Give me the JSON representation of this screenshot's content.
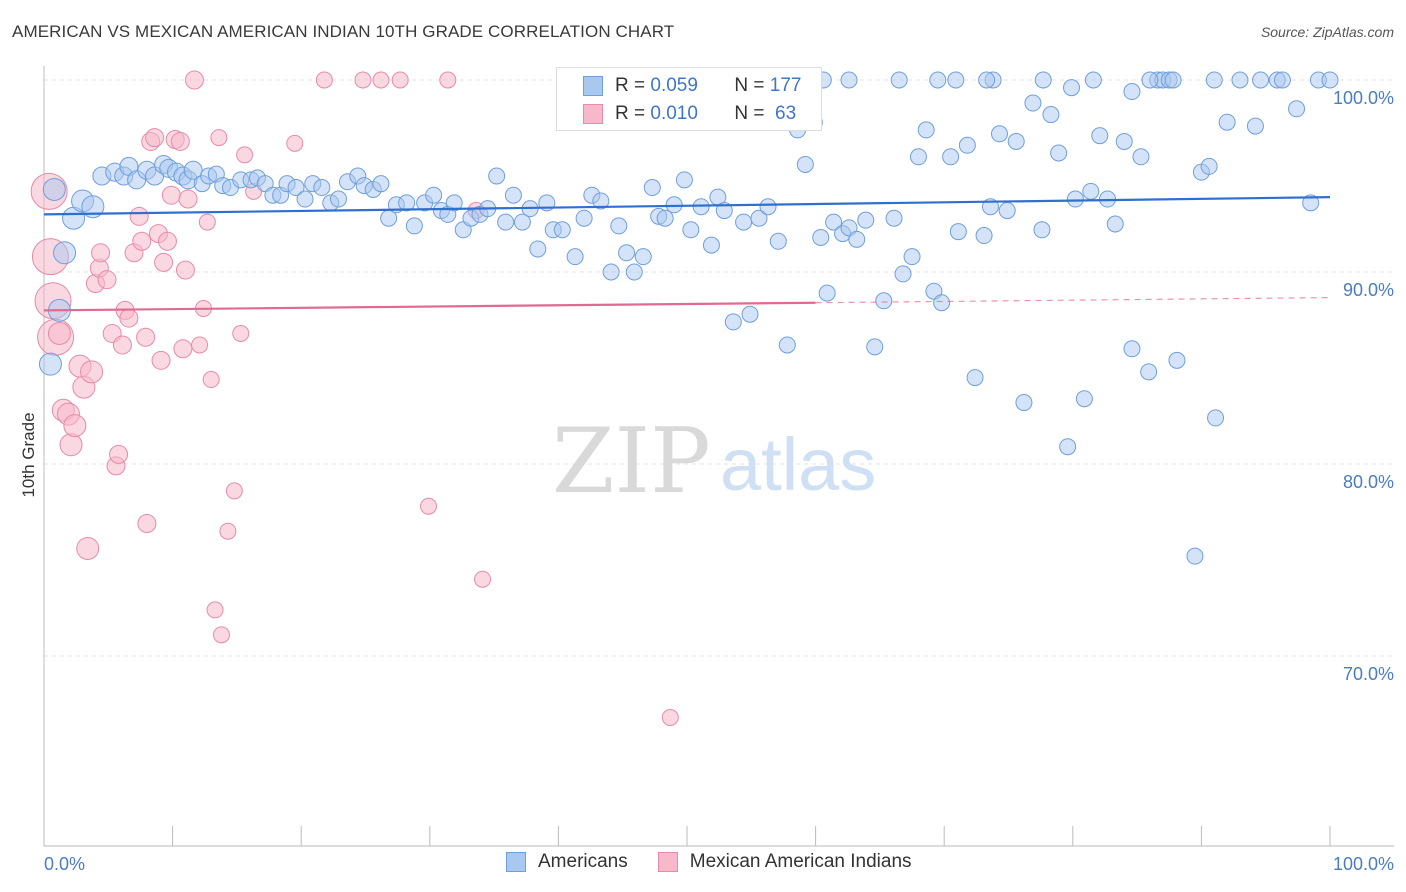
{
  "header": {
    "title": "AMERICAN VS MEXICAN AMERICAN INDIAN 10TH GRADE CORRELATION CHART",
    "source": "Source: ZipAtlas.com"
  },
  "watermark": {
    "zip": "ZIP",
    "atlas": "atlas"
  },
  "legend": {
    "rows": [
      {
        "r_label": "R = ",
        "r_value": "0.059",
        "n_label": "N = ",
        "n_value": "177"
      },
      {
        "r_label": "R = ",
        "r_value": "0.010",
        "n_label": "N = ",
        "n_value": " 63"
      }
    ]
  },
  "colors": {
    "americans_fill": "#a9c8f0",
    "americans_stroke": "#6f9fdc",
    "americans_line": "#2f6fcf",
    "mexican_fill": "#f6b8ca",
    "mexican_stroke": "#e88aa8",
    "mexican_line": "#e06a92"
  },
  "chart_data": {
    "type": "scatter",
    "ylabel": "10th Grade",
    "xlim": [
      0,
      100
    ],
    "ylim": [
      60,
      102
    ],
    "x_ticks": [
      "0.0%",
      "100.0%"
    ],
    "y_ticks": [
      {
        "value": 100,
        "label": "100.0%"
      },
      {
        "value": 90,
        "label": "90.0%"
      },
      {
        "value": 80,
        "label": "80.0%"
      },
      {
        "value": 70,
        "label": "70.0%"
      }
    ],
    "grid": true,
    "legend_position": "bottom",
    "series": [
      {
        "name": "Americans",
        "r": 0.059,
        "n": 177,
        "trend": {
          "x": [
            0,
            100
          ],
          "y": [
            93.0,
            93.9
          ]
        },
        "points": [
          [
            0.5,
            85.2
          ],
          [
            0.8,
            94.3
          ],
          [
            1.2,
            88.0
          ],
          [
            1.6,
            91.0
          ],
          [
            2.3,
            92.8
          ],
          [
            3.0,
            93.7
          ],
          [
            3.8,
            93.4
          ],
          [
            4.5,
            95.0
          ],
          [
            5.5,
            95.2
          ],
          [
            6.2,
            95.0
          ],
          [
            6.6,
            95.5
          ],
          [
            7.2,
            94.8
          ],
          [
            8.0,
            95.3
          ],
          [
            8.6,
            95.0
          ],
          [
            9.3,
            95.6
          ],
          [
            9.7,
            95.4
          ],
          [
            10.3,
            95.2
          ],
          [
            10.8,
            95.0
          ],
          [
            11.2,
            94.8
          ],
          [
            11.6,
            95.3
          ],
          [
            12.3,
            94.6
          ],
          [
            12.8,
            95.0
          ],
          [
            13.4,
            95.1
          ],
          [
            13.9,
            94.5
          ],
          [
            14.5,
            94.4
          ],
          [
            15.3,
            94.8
          ],
          [
            16.1,
            94.8
          ],
          [
            16.6,
            94.9
          ],
          [
            17.2,
            94.6
          ],
          [
            17.8,
            94.0
          ],
          [
            18.4,
            94.0
          ],
          [
            18.9,
            94.6
          ],
          [
            19.6,
            94.4
          ],
          [
            20.3,
            93.8
          ],
          [
            20.9,
            94.6
          ],
          [
            21.6,
            94.4
          ],
          [
            22.3,
            93.6
          ],
          [
            22.9,
            93.8
          ],
          [
            23.6,
            94.7
          ],
          [
            24.4,
            95.0
          ],
          [
            24.9,
            94.5
          ],
          [
            25.6,
            94.3
          ],
          [
            26.2,
            94.6
          ],
          [
            26.8,
            92.8
          ],
          [
            27.4,
            93.5
          ],
          [
            28.2,
            93.6
          ],
          [
            28.8,
            92.4
          ],
          [
            29.6,
            93.6
          ],
          [
            30.3,
            94.0
          ],
          [
            30.9,
            93.2
          ],
          [
            31.4,
            93.0
          ],
          [
            31.9,
            93.6
          ],
          [
            32.6,
            92.2
          ],
          [
            33.2,
            92.8
          ],
          [
            33.9,
            93.0
          ],
          [
            34.5,
            93.3
          ],
          [
            35.2,
            95.0
          ],
          [
            35.9,
            92.6
          ],
          [
            36.5,
            94.0
          ],
          [
            37.2,
            92.6
          ],
          [
            37.8,
            93.3
          ],
          [
            38.4,
            91.2
          ],
          [
            39.1,
            93.6
          ],
          [
            39.6,
            92.2
          ],
          [
            40.3,
            92.2
          ],
          [
            41.3,
            90.8
          ],
          [
            42.0,
            92.8
          ],
          [
            42.6,
            94.0
          ],
          [
            43.3,
            93.7
          ],
          [
            44.1,
            90.0
          ],
          [
            44.7,
            92.4
          ],
          [
            45.3,
            91.0
          ],
          [
            45.9,
            90.0
          ],
          [
            46.6,
            90.8
          ],
          [
            47.3,
            94.4
          ],
          [
            47.8,
            92.9
          ],
          [
            48.3,
            92.8
          ],
          [
            49.0,
            93.5
          ],
          [
            49.8,
            94.8
          ],
          [
            50.3,
            92.2
          ],
          [
            51.1,
            93.4
          ],
          [
            51.9,
            91.4
          ],
          [
            52.4,
            93.9
          ],
          [
            52.9,
            93.2
          ],
          [
            53.6,
            87.4
          ],
          [
            54.4,
            92.6
          ],
          [
            54.9,
            87.8
          ],
          [
            55.6,
            92.8
          ],
          [
            56.3,
            93.4
          ],
          [
            57.1,
            91.6
          ],
          [
            57.8,
            86.2
          ],
          [
            58.6,
            97.4
          ],
          [
            59.2,
            95.6
          ],
          [
            59.9,
            97.8
          ],
          [
            60.4,
            91.8
          ],
          [
            60.9,
            88.9
          ],
          [
            61.4,
            92.6
          ],
          [
            62.1,
            92.0
          ],
          [
            62.6,
            92.3
          ],
          [
            63.2,
            91.7
          ],
          [
            63.9,
            92.7
          ],
          [
            64.6,
            86.1
          ],
          [
            65.3,
            88.5
          ],
          [
            66.1,
            92.8
          ],
          [
            66.8,
            89.9
          ],
          [
            67.5,
            90.8
          ],
          [
            68.0,
            96.0
          ],
          [
            68.6,
            97.4
          ],
          [
            69.2,
            89.0
          ],
          [
            69.8,
            88.4
          ],
          [
            70.5,
            96.0
          ],
          [
            71.1,
            92.1
          ],
          [
            71.8,
            96.6
          ],
          [
            72.4,
            84.5
          ],
          [
            73.1,
            91.9
          ],
          [
            73.6,
            93.4
          ],
          [
            74.3,
            97.2
          ],
          [
            74.9,
            93.2
          ],
          [
            75.6,
            96.8
          ],
          [
            76.2,
            83.2
          ],
          [
            76.9,
            98.8
          ],
          [
            77.6,
            92.2
          ],
          [
            78.3,
            98.2
          ],
          [
            78.9,
            96.2
          ],
          [
            79.6,
            80.9
          ],
          [
            80.2,
            93.8
          ],
          [
            80.9,
            83.4
          ],
          [
            81.4,
            94.2
          ],
          [
            82.1,
            97.1
          ],
          [
            82.7,
            93.8
          ],
          [
            83.3,
            92.5
          ],
          [
            84.0,
            96.8
          ],
          [
            84.6,
            86.0
          ],
          [
            85.3,
            96.0
          ],
          [
            85.9,
            84.8
          ],
          [
            86.6,
            100
          ],
          [
            87.0,
            100
          ],
          [
            87.5,
            100
          ],
          [
            88.1,
            85.4
          ],
          [
            89.5,
            75.2
          ],
          [
            90.0,
            95.2
          ],
          [
            90.6,
            95.5
          ],
          [
            91.1,
            82.4
          ],
          [
            92.0,
            97.8
          ],
          [
            93.0,
            100
          ],
          [
            94.6,
            100
          ],
          [
            95.9,
            100
          ],
          [
            97.4,
            98.5
          ],
          [
            98.5,
            93.6
          ],
          [
            99.1,
            100
          ],
          [
            69.5,
            100
          ],
          [
            70.9,
            100
          ],
          [
            73.8,
            100
          ],
          [
            77.7,
            100
          ],
          [
            81.6,
            100
          ],
          [
            60.6,
            100
          ],
          [
            100.0,
            100
          ],
          [
            79.9,
            99.6
          ],
          [
            84.6,
            99.4
          ],
          [
            86.0,
            100
          ],
          [
            91.0,
            100
          ],
          [
            94.2,
            97.6
          ],
          [
            96.3,
            100
          ],
          [
            87.8,
            100
          ],
          [
            62.6,
            100
          ],
          [
            73.3,
            100
          ],
          [
            66.5,
            100
          ]
        ]
      },
      {
        "name": "Mexican American Indians",
        "r": 0.01,
        "n": 63,
        "trend": {
          "x": [
            0,
            60
          ],
          "y": [
            88.0,
            88.4
          ]
        },
        "points": [
          [
            0.4,
            94.2
          ],
          [
            0.5,
            90.8
          ],
          [
            0.7,
            88.5
          ],
          [
            0.9,
            86.6
          ],
          [
            1.2,
            86.8
          ],
          [
            1.5,
            82.8
          ],
          [
            1.9,
            82.6
          ],
          [
            2.1,
            81.0
          ],
          [
            2.4,
            82.0
          ],
          [
            2.8,
            85.1
          ],
          [
            3.1,
            84.0
          ],
          [
            3.4,
            75.6
          ],
          [
            3.7,
            84.8
          ],
          [
            4.0,
            89.4
          ],
          [
            4.3,
            90.2
          ],
          [
            4.4,
            91.0
          ],
          [
            4.9,
            89.6
          ],
          [
            5.3,
            86.8
          ],
          [
            5.6,
            79.9
          ],
          [
            5.8,
            80.5
          ],
          [
            6.1,
            86.2
          ],
          [
            6.3,
            88.0
          ],
          [
            6.6,
            87.6
          ],
          [
            7.0,
            91.0
          ],
          [
            7.4,
            92.9
          ],
          [
            7.6,
            91.6
          ],
          [
            7.9,
            86.6
          ],
          [
            8.0,
            76.9
          ],
          [
            8.3,
            96.8
          ],
          [
            8.6,
            97.0
          ],
          [
            8.9,
            92.0
          ],
          [
            9.1,
            85.4
          ],
          [
            9.3,
            90.5
          ],
          [
            9.6,
            91.6
          ],
          [
            9.9,
            94.0
          ],
          [
            10.2,
            96.9
          ],
          [
            10.6,
            96.8
          ],
          [
            10.8,
            86.0
          ],
          [
            11.0,
            90.1
          ],
          [
            11.2,
            93.8
          ],
          [
            11.7,
            100
          ],
          [
            12.1,
            86.2
          ],
          [
            12.4,
            88.1
          ],
          [
            12.7,
            92.6
          ],
          [
            13.0,
            84.4
          ],
          [
            13.3,
            72.4
          ],
          [
            13.6,
            97.0
          ],
          [
            13.8,
            71.1
          ],
          [
            14.3,
            76.5
          ],
          [
            14.8,
            78.6
          ],
          [
            15.3,
            86.8
          ],
          [
            15.6,
            96.1
          ],
          [
            16.3,
            94.2
          ],
          [
            19.5,
            96.7
          ],
          [
            21.8,
            100
          ],
          [
            24.8,
            100
          ],
          [
            26.2,
            100
          ],
          [
            27.7,
            100
          ],
          [
            29.9,
            77.8
          ],
          [
            31.4,
            100
          ],
          [
            34.1,
            74.0
          ],
          [
            48.7,
            66.8
          ],
          [
            33.6,
            93.2
          ]
        ]
      }
    ]
  }
}
